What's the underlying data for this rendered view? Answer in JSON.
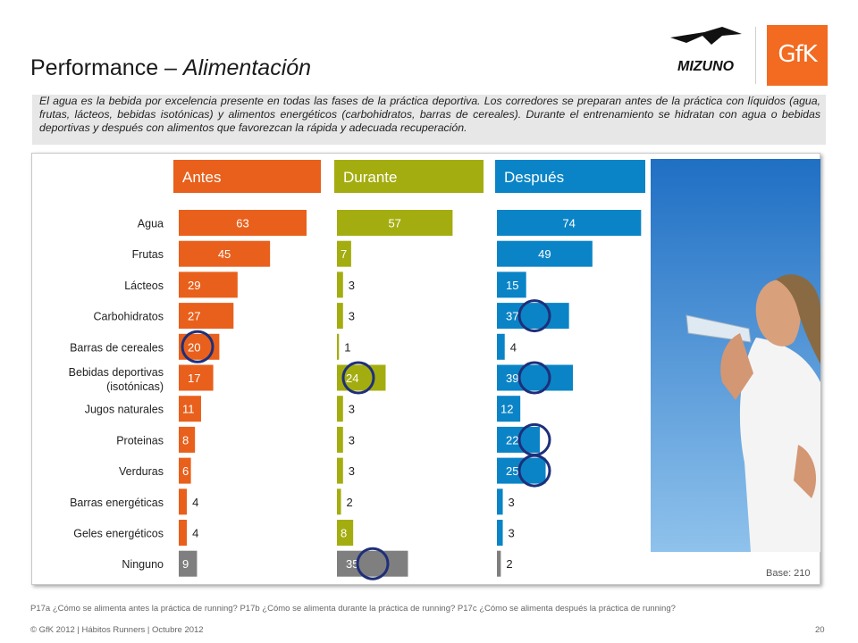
{
  "title_main": "Performance – ",
  "title_italic": "Alimentación",
  "intro": "El agua es la bebida por excelencia presente en todas las fases de la práctica deportiva. Los corredores se preparan antes de la práctica con líquidos (agua, frutas, lácteos, bebidas isotónicas) y alimentos energéticos (carbohidratos, barras de cereales). Durante el entrenamiento se hidratan con agua o bebidas deportivas y después con alimentos que favorezcan la rápida y adecuada recuperación.",
  "logos": {
    "mizuno": "MIZUNO",
    "gfk": "GfK"
  },
  "base": "Base: 210",
  "footnote": "P17a ¿Cómo se alimenta antes la práctica de running? P17b ¿Cómo se alimenta durante la práctica de running? P17c ¿Cómo se alimenta después la práctica de running?",
  "copyright": "© GfK 2012 | Hábitos Runners | Octubre 2012",
  "page_number": "20",
  "colors": {
    "antes": "#e8601c",
    "durante": "#a4ad0f",
    "despues": "#0a84c6",
    "ninguno": "#7f7f7f",
    "circle": "#1e2f7a"
  },
  "chart_data": {
    "type": "bar",
    "orientation": "horizontal",
    "categories": [
      "Agua",
      "Frutas",
      "Lácteos",
      "Carbohidratos",
      "Barras de cereales",
      "Bebidas deportivas (isotónicas)",
      "Jugos naturales",
      "Proteinas",
      "Verduras",
      "Barras energéticas",
      "Geles energéticos",
      "Ninguno"
    ],
    "series": [
      {
        "name": "Antes",
        "values": [
          63,
          45,
          29,
          27,
          20,
          17,
          11,
          8,
          6,
          4,
          4,
          9
        ],
        "circled": [
          4
        ]
      },
      {
        "name": "Durante",
        "values": [
          57,
          7,
          3,
          3,
          1,
          24,
          3,
          3,
          3,
          2,
          8,
          35
        ],
        "circled": [
          5,
          11
        ]
      },
      {
        "name": "Después",
        "values": [
          74,
          49,
          15,
          37,
          4,
          39,
          12,
          22,
          25,
          3,
          3,
          2
        ],
        "circled": [
          3,
          5,
          7,
          8
        ]
      }
    ]
  }
}
